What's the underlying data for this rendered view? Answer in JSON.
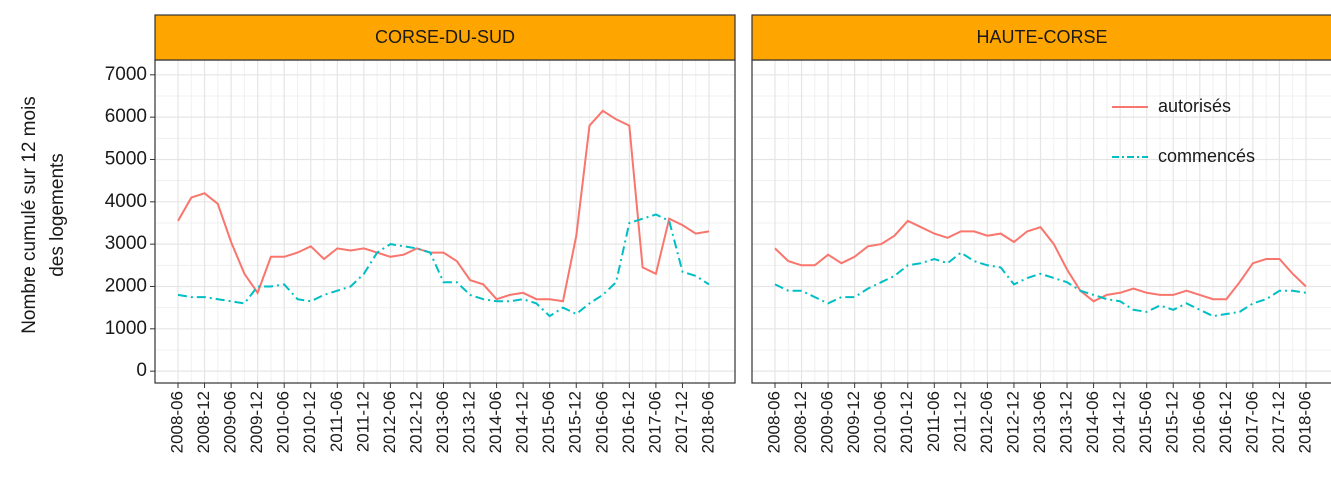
{
  "chart_data": [
    {
      "type": "line",
      "title": "CORSE-DU-SUD",
      "ylabel": [
        "Nombre cumulé sur 12 mois",
        "des logements"
      ],
      "x": [
        "2008-06",
        "2008-09",
        "2008-12",
        "2009-03",
        "2009-06",
        "2009-09",
        "2009-12",
        "2010-03",
        "2010-06",
        "2010-09",
        "2010-12",
        "2011-03",
        "2011-06",
        "2011-09",
        "2011-12",
        "2012-03",
        "2012-06",
        "2012-09",
        "2012-12",
        "2013-03",
        "2013-06",
        "2013-09",
        "2013-12",
        "2014-03",
        "2014-06",
        "2014-09",
        "2014-12",
        "2015-03",
        "2015-06",
        "2015-09",
        "2015-12",
        "2016-03",
        "2016-06",
        "2016-09",
        "2016-12",
        "2017-03",
        "2017-06",
        "2017-09",
        "2017-12",
        "2018-03",
        "2018-06"
      ],
      "xticks": [
        "2008-06",
        "2008-12",
        "2009-06",
        "2009-12",
        "2010-06",
        "2010-12",
        "2011-06",
        "2011-12",
        "2012-06",
        "2012-12",
        "2013-06",
        "2013-12",
        "2014-06",
        "2014-12",
        "2015-06",
        "2015-12",
        "2016-06",
        "2016-12",
        "2017-06",
        "2017-12",
        "2018-06"
      ],
      "series": [
        {
          "name": "autorisés",
          "color": "#F8766D",
          "values": [
            3550,
            4100,
            4200,
            3950,
            3050,
            2300,
            1850,
            2700,
            2700,
            2800,
            2950,
            2650,
            2900,
            2850,
            2900,
            2800,
            2700,
            2750,
            2900,
            2800,
            2800,
            2600,
            2150,
            2050,
            1700,
            1800,
            1850,
            1700,
            1700,
            1650,
            3200,
            5800,
            6150,
            5950,
            5800,
            2450,
            2300,
            3600,
            3450,
            3250,
            3300
          ]
        },
        {
          "name": "commencés",
          "color": "#00BFC4",
          "values": [
            1800,
            1750,
            1750,
            1700,
            1650,
            1600,
            2000,
            2000,
            2050,
            1700,
            1650,
            1800,
            1900,
            2000,
            2300,
            2800,
            3000,
            2950,
            2900,
            2800,
            2100,
            2100,
            1800,
            1700,
            1650,
            1650,
            1700,
            1600,
            1300,
            1500,
            1350,
            1600,
            1800,
            2100,
            3500,
            3600,
            3700,
            3550,
            2350,
            2250,
            2050
          ]
        }
      ],
      "ylim": [
        -280,
        7350
      ],
      "yticks": [
        0,
        1000,
        2000,
        3000,
        4000,
        5000,
        6000,
        7000
      ],
      "grid": true
    },
    {
      "type": "line",
      "title": "HAUTE-CORSE",
      "x": [
        "2008-06",
        "2008-09",
        "2008-12",
        "2009-03",
        "2009-06",
        "2009-09",
        "2009-12",
        "2010-03",
        "2010-06",
        "2010-09",
        "2010-12",
        "2011-03",
        "2011-06",
        "2011-09",
        "2011-12",
        "2012-03",
        "2012-06",
        "2012-09",
        "2012-12",
        "2013-03",
        "2013-06",
        "2013-09",
        "2013-12",
        "2014-03",
        "2014-06",
        "2014-09",
        "2014-12",
        "2015-03",
        "2015-06",
        "2015-09",
        "2015-12",
        "2016-03",
        "2016-06",
        "2016-09",
        "2016-12",
        "2017-03",
        "2017-06",
        "2017-09",
        "2017-12",
        "2018-03",
        "2018-06"
      ],
      "xticks": [
        "2008-06",
        "2008-12",
        "2009-06",
        "2009-12",
        "2010-06",
        "2010-12",
        "2011-06",
        "2011-12",
        "2012-06",
        "2012-12",
        "2013-06",
        "2013-12",
        "2014-06",
        "2014-12",
        "2015-06",
        "2015-12",
        "2016-06",
        "2016-12",
        "2017-06",
        "2017-12",
        "2018-06"
      ],
      "series": [
        {
          "name": "autorisés",
          "color": "#F8766D",
          "values": [
            2900,
            2600,
            2500,
            2500,
            2750,
            2550,
            2700,
            2950,
            3000,
            3200,
            3550,
            3400,
            3250,
            3150,
            3300,
            3300,
            3200,
            3250,
            3050,
            3300,
            3400,
            3000,
            2400,
            1900,
            1650,
            1800,
            1850,
            1950,
            1850,
            1800,
            1800,
            1900,
            1800,
            1700,
            1700,
            2100,
            2550,
            2650,
            2650,
            2300,
            2000
          ]
        },
        {
          "name": "commencés",
          "color": "#00BFC4",
          "values": [
            2050,
            1900,
            1900,
            1750,
            1600,
            1750,
            1750,
            1950,
            2100,
            2250,
            2500,
            2550,
            2650,
            2550,
            2800,
            2600,
            2500,
            2450,
            2050,
            2200,
            2300,
            2200,
            2100,
            1900,
            1800,
            1700,
            1650,
            1450,
            1400,
            1550,
            1450,
            1600,
            1450,
            1300,
            1350,
            1400,
            1600,
            1700,
            1900,
            1900,
            1850
          ]
        }
      ],
      "ylim": [
        -280,
        7350
      ],
      "yticks": [
        0,
        1000,
        2000,
        3000,
        4000,
        5000,
        6000,
        7000
      ],
      "grid": true,
      "legend": "top-right"
    }
  ]
}
